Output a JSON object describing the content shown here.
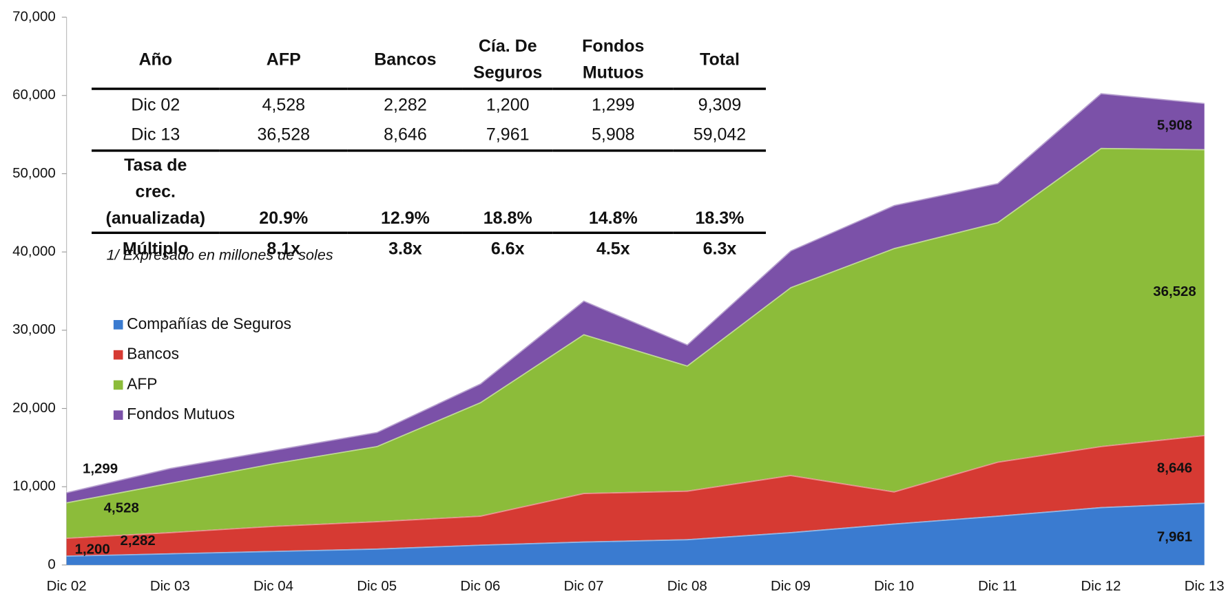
{
  "chart_data": {
    "type": "stacked_area",
    "categories": [
      "Dic 02",
      "Dic 03",
      "Dic 04",
      "Dic 05",
      "Dic 06",
      "Dic 07",
      "Dic 08",
      "Dic 09",
      "Dic 10",
      "Dic 11",
      "Dic 12",
      "Dic 13"
    ],
    "series": [
      {
        "name": "Compañías de Seguros",
        "color": "#3a7bd0",
        "values": [
          1200,
          1500,
          1800,
          2100,
          2600,
          3000,
          3300,
          4200,
          5300,
          6300,
          7400,
          7961
        ],
        "value_labels": [
          "1,200",
          null,
          null,
          null,
          null,
          null,
          null,
          null,
          null,
          null,
          null,
          "7,961"
        ]
      },
      {
        "name": "Bancos",
        "color": "#d63a33",
        "values": [
          2282,
          2700,
          3200,
          3500,
          3700,
          6200,
          6200,
          7300,
          4100,
          6900,
          7800,
          8646
        ],
        "value_labels": [
          "2,282",
          null,
          null,
          null,
          null,
          null,
          null,
          null,
          null,
          null,
          null,
          "8,646"
        ]
      },
      {
        "name": "AFP",
        "color": "#8cbc3a",
        "values": [
          4528,
          6300,
          8000,
          9600,
          14500,
          20300,
          16000,
          24000,
          31100,
          30600,
          38100,
          36528
        ],
        "value_labels": [
          "4,528",
          null,
          null,
          null,
          null,
          null,
          null,
          null,
          null,
          null,
          null,
          "36,528"
        ]
      },
      {
        "name": "Fondos Mutuos",
        "color": "#7b51a8",
        "values": [
          1299,
          1900,
          1700,
          1800,
          2400,
          4300,
          2700,
          4700,
          5500,
          5000,
          7000,
          5908
        ],
        "value_labels": [
          "1,299",
          null,
          null,
          null,
          null,
          null,
          null,
          null,
          null,
          null,
          null,
          "5,908"
        ]
      }
    ],
    "ylim": [
      0,
      70000
    ],
    "yticks": [
      0,
      {
        "value": 10000,
        "label": "10,000"
      },
      {
        "value": 20000,
        "label": "20,000"
      },
      {
        "value": 30000,
        "label": "30,000"
      },
      {
        "value": 40000,
        "label": "40,000"
      },
      {
        "value": 50000,
        "label": "50,000"
      },
      {
        "value": 60000,
        "label": "60,000"
      },
      {
        "value": 70000,
        "label": "70,000"
      }
    ],
    "grid": false,
    "legend": "left"
  },
  "table": {
    "columns": [
      "Año",
      "AFP",
      "Bancos",
      "Cía. De Seguros",
      "Fondos Mutuos",
      "Total"
    ],
    "rows": [
      [
        "Dic 02",
        "4,528",
        "2,282",
        "1,200",
        "1,299",
        "9,309"
      ],
      [
        "Dic 13",
        "36,528",
        "8,646",
        "7,961",
        "5,908",
        "59,042"
      ],
      [
        "Tasa de crec. (anualizada)",
        "20.9%",
        "12.9%",
        "18.8%",
        "14.8%",
        "18.3%"
      ],
      [
        "Múltiplo",
        "8.1x",
        "3.8x",
        "6.6x",
        "4.5x",
        "6.3x"
      ]
    ],
    "note": "1/ Expresado en millones de soles"
  }
}
